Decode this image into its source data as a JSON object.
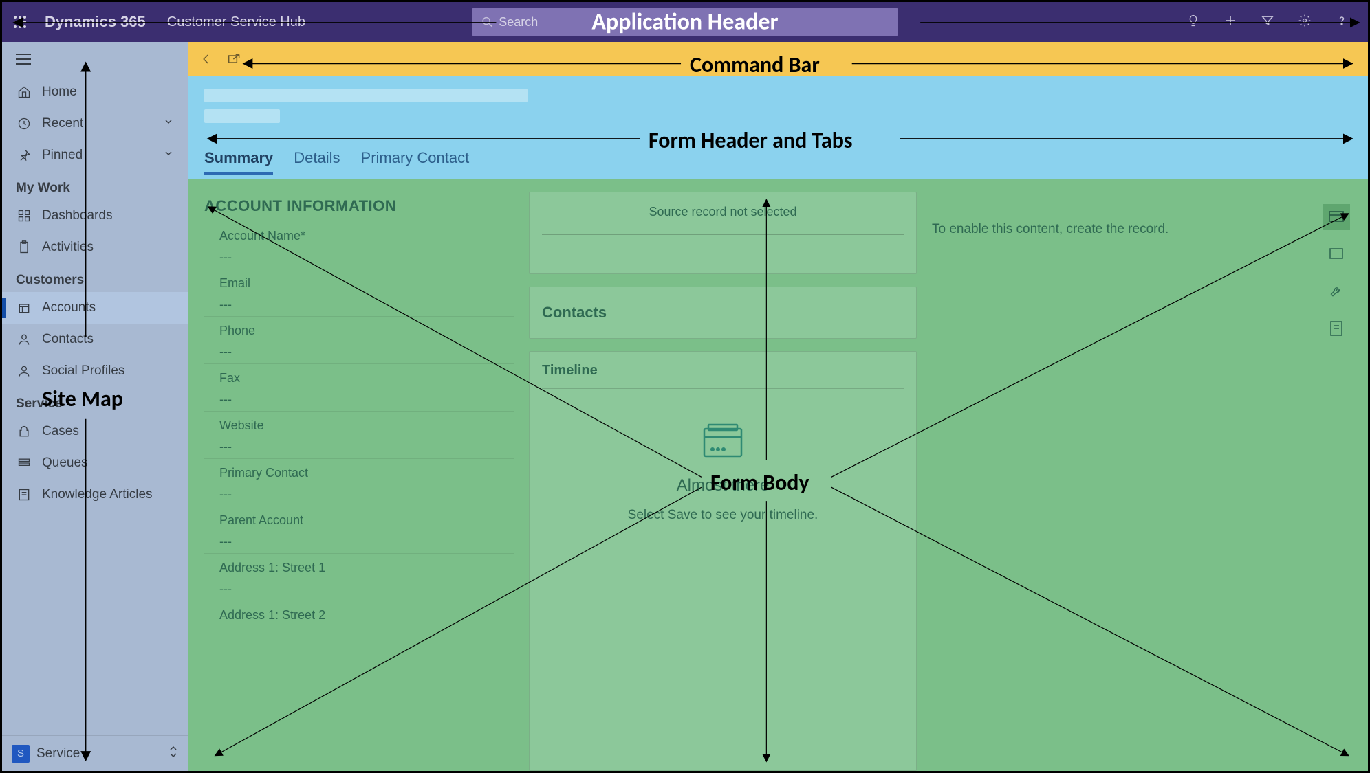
{
  "colors": {
    "header_bg": "#3b2e70",
    "cmdbar_bg": "#f6c753",
    "formhdr_bg": "#8bd2ee",
    "formbody_bg": "#7bbf89",
    "sitemap_overlay": "rgba(52,112,197,0.35)"
  },
  "app_header": {
    "brand": "Dynamics 365",
    "app_name": "Customer Service Hub",
    "search_placeholder": "Search"
  },
  "annotations": {
    "app_header": "Application Header",
    "command_bar": "Command Bar",
    "form_header": "Form Header and Tabs",
    "site_map": "Site Map",
    "form_body": "Form Body"
  },
  "sitemap": {
    "top": [
      {
        "label": "Home",
        "icon": "home"
      },
      {
        "label": "Recent",
        "icon": "clock",
        "chev": true
      },
      {
        "label": "Pinned",
        "icon": "pin",
        "chev": true
      }
    ],
    "groups": [
      {
        "title": "My Work",
        "items": [
          {
            "label": "Dashboards",
            "icon": "dash"
          },
          {
            "label": "Activities",
            "icon": "clip"
          }
        ]
      },
      {
        "title": "Customers",
        "items": [
          {
            "label": "Accounts",
            "icon": "acct",
            "active": true
          },
          {
            "label": "Contacts",
            "icon": "contact"
          },
          {
            "label": "Social Profiles",
            "icon": "social"
          }
        ]
      },
      {
        "title": "Service",
        "items": [
          {
            "label": "Cases",
            "icon": "case"
          },
          {
            "label": "Queues",
            "icon": "queue"
          },
          {
            "label": "Knowledge Articles",
            "icon": "kb"
          }
        ]
      }
    ],
    "bottom": {
      "badge": "S",
      "label": "Service"
    }
  },
  "tabs": [
    {
      "label": "Summary",
      "active": true
    },
    {
      "label": "Details"
    },
    {
      "label": "Primary Contact"
    }
  ],
  "form": {
    "section_title": "ACCOUNT INFORMATION",
    "fields": [
      {
        "label": "Account Name*",
        "value": "---"
      },
      {
        "label": "Email",
        "value": "---"
      },
      {
        "label": "Phone",
        "value": "---"
      },
      {
        "label": "Fax",
        "value": "---"
      },
      {
        "label": "Website",
        "value": "---"
      },
      {
        "label": "Primary Contact",
        "value": "---"
      },
      {
        "label": "Parent Account",
        "value": "---"
      },
      {
        "label": "Address 1: Street 1",
        "value": "---"
      },
      {
        "label": "Address 1: Street 2",
        "value": ""
      }
    ],
    "source_msg": "Source record not selected",
    "contacts_title": "Contacts",
    "timeline_title": "Timeline",
    "timeline_heading": "Almost there",
    "timeline_sub": "Select Save to see your timeline.",
    "col3_msg": "To enable this content, create the record."
  }
}
